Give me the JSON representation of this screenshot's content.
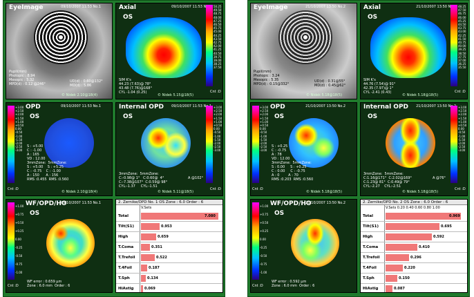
{
  "left": {
    "eye_image": {
      "title": "EyeImage",
      "eye": "OS",
      "stamp": "09/10/2007 11:53 No.1",
      "lines": [
        "Pupil(mm)",
        "Photopic : 8.94",
        "Mesopic : 5.32",
        "MPD(d) : 0.12 @246°"
      ],
      "right_lines": [
        "UD(d) : 0.60@132°",
        "MD(d) : 5.86"
      ],
      "foot": "© Nidek 2.10@18(4)"
    },
    "axial": {
      "title": "Axial",
      "eye": "OS",
      "stamp": "09/10/2007 11:53 No.1",
      "simk_lines": [
        "SIM K's",
        "44.23 (7.63)@ 78°",
        "43.48 (7.76)@168°",
        "CYL -1.04 (0.25)"
      ],
      "foot": "© Nidek 5.15@18(5)",
      "scale": [
        "50.25",
        "49.50",
        "48.75",
        "48.00",
        "47.25",
        "46.50",
        "45.75",
        "45.00",
        "44.25",
        "43.50",
        "42.75",
        "42.00",
        "41.25",
        "40.50",
        "39.75",
        "39.00",
        "38.25",
        "37.50"
      ],
      "scale_foot": "Cnt :D"
    },
    "opd": {
      "title": "OPD",
      "eye": "OS",
      "stamp": "09/10/2007 11:53 No.1",
      "lines": [
        "S : +5.00",
        "C : -1.00",
        "A : 165",
        "VD : 12.00",
        "3mmZone:  5mmZone:",
        "S : +5.00    S : +5.25",
        "C : -0.75    C : -1.00",
        "A : 150      A : 156",
        "RMS :0.455  RMS :0.560"
      ],
      "scale": [
        "+3.00",
        "+2.50",
        "+2.00",
        "+1.50",
        "+1.00",
        "+0.50",
        "0.00",
        "-0.50",
        "-1.00",
        "-1.50",
        "-2.00",
        "-2.50",
        "-3.00"
      ],
      "scale_foot": "Cnt :D",
      "foot": "© Nidek 2.10@18(4)"
    },
    "internal_opd": {
      "title": "Internal OPD",
      "eye": "OS",
      "stamp": "09/10/2007 11:53 No.1",
      "lines": [
        "3mmZone:  5mmZone:",
        "C:-0.98@ 1°   C:0.60@  4°",
        "C:-7.38@107°  C:0.59@ 98°",
        "CYL:-1.37     CYL:-1.51"
      ],
      "right": "A @102°",
      "scale": [
        "+3.00",
        "+2.50",
        "+2.00",
        "+1.50",
        "+1.00",
        "+0.50",
        "0.00",
        "-0.50",
        "-1.00",
        "-1.50",
        "-2.00",
        "-2.50",
        "-3.00"
      ],
      "scale_foot": "Cnt :D",
      "foot": "© Nidek 5.11@18(5)"
    },
    "wfopd": {
      "title": "WF/OPD/HO",
      "eye": "OS",
      "stamp": "09/10/2007 11:53 No.1",
      "lines": [
        "WF error : 0.659 µm",
        "Zone : 6.0 mm  Order : 6"
      ],
      "scale": [
        "+1.00",
        "+0.75",
        "+0.50",
        "+0.25",
        "0.00",
        "-0.25",
        "-0.50",
        "-0.75",
        "-1.00"
      ],
      "scale_foot": "Cnt :D",
      "foot": "© Nidek 2.10@18(4)"
    },
    "zernike": {
      "header": "2. Zernike/OPD No. 1 OS  Zone : 6.0 Order : 6",
      "ticks": "V.Sets",
      "rows": [
        {
          "label": "Total",
          "value": "7.080",
          "frac": 1.0
        },
        {
          "label": "Tilt(S1)",
          "value": "0.953",
          "frac": 0.24
        },
        {
          "label": "High",
          "value": "0.659",
          "frac": 0.2
        },
        {
          "label": "T.Coma",
          "value": "0.351",
          "frac": 0.12
        },
        {
          "label": "T.Trefoil",
          "value": "0.522",
          "frac": 0.18
        },
        {
          "label": "T.4Foil",
          "value": "0.187",
          "frac": 0.08
        },
        {
          "label": "T.Sph",
          "value": "0.134",
          "frac": 0.06
        },
        {
          "label": "HiAstig",
          "value": "0.069",
          "frac": 0.03
        }
      ]
    }
  },
  "right": {
    "eye_image": {
      "title": "EyeImage",
      "eye": "OS",
      "stamp": "21/10/2007 13:50 No.2",
      "lines": [
        "Pupil(mm)",
        "Photopic : 3.24",
        "Mesopic : 5.35",
        "MPD(d) : 0.15@332°"
      ],
      "right_lines": [
        "UD(d) : 0.31@55°",
        "MD(d) : 0.45@62°"
      ],
      "foot": "© Nidek 5.18@18(5)"
    },
    "axial": {
      "title": "Axial",
      "eye": "OS",
      "stamp": "21/10/2007 13:50 No.2",
      "simk_lines": [
        "SIM K's",
        "44.76 (7.54)@ 91°",
        "42.35 (7.97)@ 1°",
        "CYL -2.41 (0.43)"
      ],
      "foot": "© Nidek 5.18@18(5)",
      "scale": [
        "48.25",
        "47.50",
        "46.75",
        "46.00",
        "45.25",
        "44.50",
        "43.75",
        "43.00",
        "42.25",
        "41.50",
        "40.75",
        "40.00",
        "39.25",
        "38.50",
        "37.75",
        "37.00",
        "36.25",
        "35.50"
      ],
      "scale_foot": "Cnt :D"
    },
    "opd": {
      "title": "OPD",
      "eye": "OS",
      "stamp": "21/10/2007 13:50 No.2",
      "lines": [
        "S : +0.25",
        "C : -0.75",
        "A : 78",
        "VD : 12.00",
        "3mmZone:  5mmZone:",
        "S : 0.00     S : +0.25",
        "C : 0.00     C : -0.75",
        "A : 0        A : 70",
        "RMS :0.203  RMS :0.560"
      ],
      "scale": [
        "+3.00",
        "+2.50",
        "+2.00",
        "+1.50",
        "+1.00",
        "+0.50",
        "0.00",
        "-0.50",
        "-1.00",
        "-1.50",
        "-2.00",
        "-2.50",
        "-3.00"
      ],
      "scale_foot": "Cnt :D",
      "foot": "© Nidek 5.18@18(5)"
    },
    "internal_opd": {
      "title": "Internal OPD",
      "eye": "OS",
      "stamp": "21/10/2007 13:50 No.2",
      "lines": [
        "3mmZone:  5mmZone:",
        "C:1.16@171°  C:2.02@169°",
        "C:1.23@ 81°  C:0.49@ 79°",
        "CYL:-2.27    CYL:-2.51"
      ],
      "right": "A @76°",
      "scale": [
        "+3.00",
        "+2.50",
        "+2.00",
        "+1.50",
        "+1.00",
        "+0.50",
        "0.00",
        "-0.50",
        "-1.00",
        "-1.50",
        "-2.00",
        "-2.50",
        "-3.00"
      ],
      "scale_foot": "Cnt :D",
      "foot": "© Nidek 5.18@18(5)"
    },
    "wfopd": {
      "title": "WF/OPD/HO",
      "eye": "OS",
      "stamp": "21/10/2007 13:50 No.2",
      "lines": [
        "WF error : 0.592 µm",
        "Zone : 6.0 mm  Order : 6"
      ],
      "scale": [
        "+1.00",
        "+0.75",
        "+0.50",
        "+0.25",
        "0.00",
        "-0.25",
        "-0.50",
        "-0.75",
        "-1.00"
      ],
      "scale_foot": "Cnt :D",
      "foot": "© Nidek 5.18@18(5)"
    },
    "zernike": {
      "header": "2. Zernike/OPD No. 2 OS  Zone : 6.0 Order : 6",
      "ticks": "V.Sets   0.20   0.40   0.60   0.80   1.00",
      "rows": [
        {
          "label": "Total",
          "value": "0.969",
          "frac": 0.97
        },
        {
          "label": "Tilt(S1)",
          "value": "0.695",
          "frac": 0.7
        },
        {
          "label": "High",
          "value": "0.592",
          "frac": 0.6
        },
        {
          "label": "T.Coma",
          "value": "0.410",
          "frac": 0.41
        },
        {
          "label": "T.Trefoil",
          "value": "0.296",
          "frac": 0.3
        },
        {
          "label": "T.4Foil",
          "value": "0.220",
          "frac": 0.22
        },
        {
          "label": "T.Sph",
          "value": "0.150",
          "frac": 0.15
        },
        {
          "label": "HiAstig",
          "value": "0.087",
          "frac": 0.09
        }
      ]
    }
  }
}
